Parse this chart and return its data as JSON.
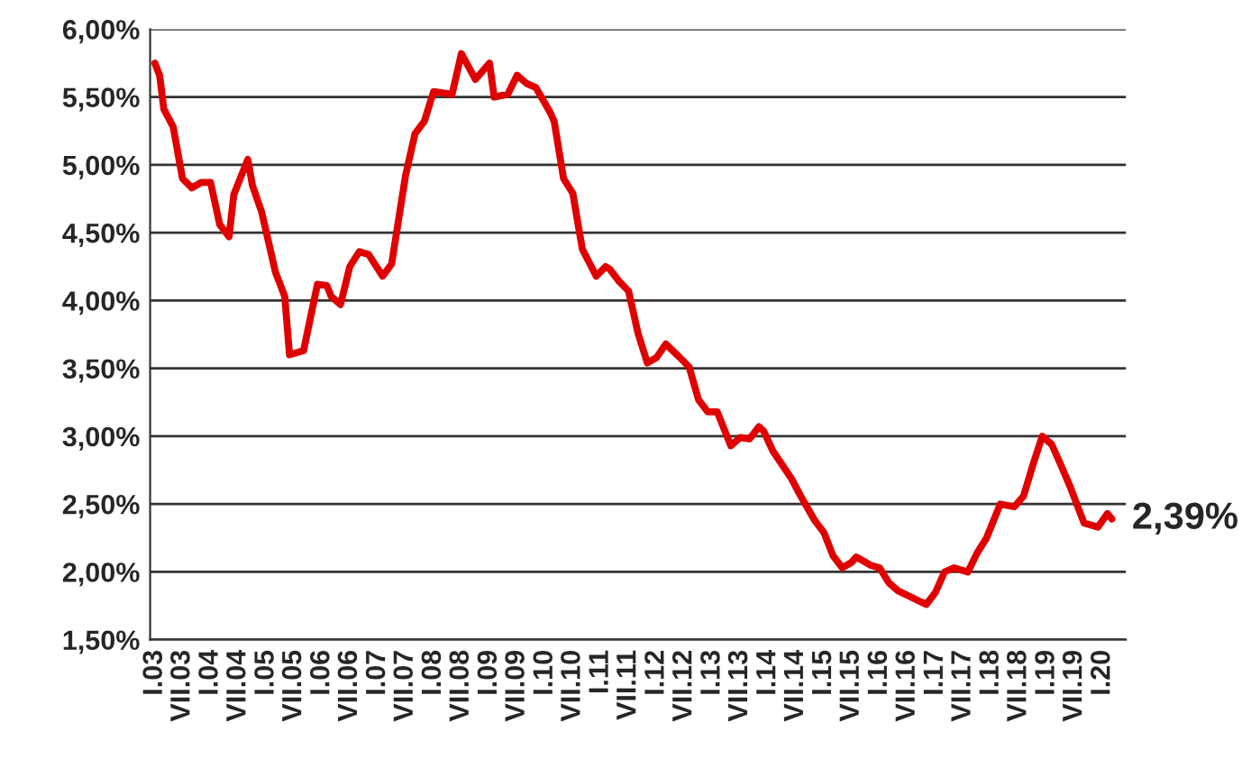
{
  "chart_data": {
    "type": "line",
    "x": [
      "2003-01",
      "2003-02",
      "2003-03",
      "2003-05",
      "2003-07",
      "2003-09",
      "2003-11",
      "2004-01",
      "2004-03",
      "2004-05",
      "2004-06",
      "2004-09",
      "2004-10",
      "2004-12",
      "2005-03",
      "2005-05",
      "2005-06",
      "2005-09",
      "2005-12",
      "2006-02",
      "2006-03",
      "2006-05",
      "2006-07",
      "2006-09",
      "2006-11",
      "2007-02",
      "2007-04",
      "2007-07",
      "2007-09",
      "2007-11",
      "2008-01",
      "2008-05",
      "2008-07",
      "2008-10",
      "2009-01",
      "2009-02",
      "2009-05",
      "2009-07",
      "2009-09",
      "2009-11",
      "2010-02",
      "2010-03",
      "2010-05",
      "2010-07",
      "2010-09",
      "2010-12",
      "2011-02",
      "2011-03",
      "2011-05",
      "2011-07",
      "2011-09",
      "2011-11",
      "2012-01",
      "2012-03",
      "2012-06",
      "2012-08",
      "2012-10",
      "2012-12",
      "2013-02",
      "2013-05",
      "2013-07",
      "2013-09",
      "2013-11",
      "2013-12",
      "2014-02",
      "2014-06",
      "2014-08",
      "2014-11",
      "2015-01",
      "2015-03",
      "2015-05",
      "2015-07",
      "2015-08",
      "2015-11",
      "2016-01",
      "2016-03",
      "2016-05",
      "2016-08",
      "2016-11",
      "2017-01",
      "2017-03",
      "2017-05",
      "2017-08",
      "2017-10",
      "2017-12",
      "2018-03",
      "2018-06",
      "2018-08",
      "2018-10",
      "2018-12",
      "2019-02",
      "2019-04",
      "2019-06",
      "2019-09",
      "2019-12",
      "2020-02",
      "2020-03"
    ],
    "series": [
      {
        "color": "#e00000",
        "values": [
          5.75,
          5.66,
          5.41,
          5.28,
          4.9,
          4.83,
          4.87,
          4.87,
          4.56,
          4.47,
          4.78,
          5.04,
          4.85,
          4.65,
          4.21,
          4.03,
          3.6,
          3.63,
          4.12,
          4.11,
          4.03,
          3.97,
          4.25,
          4.36,
          4.34,
          4.18,
          4.27,
          4.92,
          5.23,
          5.32,
          5.54,
          5.52,
          5.82,
          5.63,
          5.75,
          5.5,
          5.52,
          5.66,
          5.6,
          5.57,
          5.39,
          5.32,
          4.9,
          4.79,
          4.38,
          4.18,
          4.25,
          4.23,
          4.14,
          4.07,
          3.76,
          3.54,
          3.58,
          3.68,
          3.58,
          3.51,
          3.27,
          3.18,
          3.18,
          2.93,
          2.99,
          2.98,
          3.07,
          3.04,
          2.89,
          2.69,
          2.56,
          2.38,
          2.29,
          2.12,
          2.03,
          2.07,
          2.11,
          2.05,
          2.03,
          1.92,
          1.86,
          1.81,
          1.76,
          1.85,
          2.0,
          2.03,
          2.0,
          2.14,
          2.25,
          2.5,
          2.48,
          2.56,
          2.79,
          3.0,
          2.94,
          2.79,
          2.63,
          2.36,
          2.33,
          2.43,
          2.39
        ]
      }
    ],
    "annotations": [
      {
        "text": "2,39%",
        "x": "2020-03",
        "y": 2.39
      }
    ],
    "xlim": [
      "2002-12",
      "2020-06"
    ],
    "xticks": [
      {
        "value": "2003-01",
        "label": "I.03"
      },
      {
        "value": "2003-07",
        "label": "VII.03"
      },
      {
        "value": "2004-01",
        "label": "I.04"
      },
      {
        "value": "2004-07",
        "label": "VII.04"
      },
      {
        "value": "2005-01",
        "label": "I.05"
      },
      {
        "value": "2005-07",
        "label": "VII.05"
      },
      {
        "value": "2006-01",
        "label": "I.06"
      },
      {
        "value": "2006-07",
        "label": "VII.06"
      },
      {
        "value": "2007-01",
        "label": "I.07"
      },
      {
        "value": "2007-07",
        "label": "VII.07"
      },
      {
        "value": "2008-01",
        "label": "I.08"
      },
      {
        "value": "2008-07",
        "label": "VII.08"
      },
      {
        "value": "2009-01",
        "label": "I.09"
      },
      {
        "value": "2009-07",
        "label": "VII.09"
      },
      {
        "value": "2010-01",
        "label": "I.10"
      },
      {
        "value": "2010-07",
        "label": "VII.10"
      },
      {
        "value": "2011-01",
        "label": "I.11"
      },
      {
        "value": "2011-07",
        "label": "VII.11"
      },
      {
        "value": "2012-01",
        "label": "I.12"
      },
      {
        "value": "2012-07",
        "label": "VII.12"
      },
      {
        "value": "2013-01",
        "label": "I.13"
      },
      {
        "value": "2013-07",
        "label": "VII.13"
      },
      {
        "value": "2014-01",
        "label": "I.14"
      },
      {
        "value": "2014-07",
        "label": "VII.14"
      },
      {
        "value": "2015-01",
        "label": "I.15"
      },
      {
        "value": "2015-07",
        "label": "VII.15"
      },
      {
        "value": "2016-01",
        "label": "I.16"
      },
      {
        "value": "2016-07",
        "label": "VII.16"
      },
      {
        "value": "2017-01",
        "label": "I.17"
      },
      {
        "value": "2017-07",
        "label": "VII.17"
      },
      {
        "value": "2018-01",
        "label": "I.18"
      },
      {
        "value": "2018-07",
        "label": "VII.18"
      },
      {
        "value": "2019-01",
        "label": "I.19"
      },
      {
        "value": "2019-07",
        "label": "VII.19"
      },
      {
        "value": "2020-01",
        "label": "I.20"
      }
    ],
    "ylim": [
      1.5,
      6.0
    ],
    "yticks": [
      {
        "value": 1.5,
        "label": "1,50%"
      },
      {
        "value": 2.0,
        "label": "2,00%"
      },
      {
        "value": 2.5,
        "label": "2,50%"
      },
      {
        "value": 3.0,
        "label": "3,00%"
      },
      {
        "value": 3.5,
        "label": "3,50%"
      },
      {
        "value": 4.0,
        "label": "4,00%"
      },
      {
        "value": 4.5,
        "label": "4,50%"
      },
      {
        "value": 5.0,
        "label": "5,00%"
      },
      {
        "value": 5.5,
        "label": "5,50%"
      },
      {
        "value": 6.0,
        "label": "6,00%"
      }
    ],
    "grid": "y",
    "legend": false,
    "marker": "none",
    "line_style": "solid"
  }
}
